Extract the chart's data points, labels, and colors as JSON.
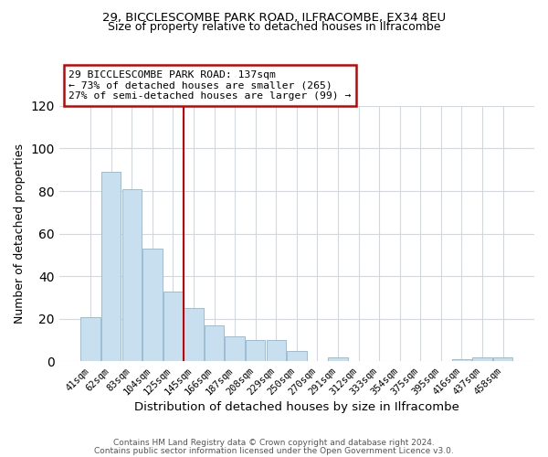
{
  "title1": "29, BICCLESCOMBE PARK ROAD, ILFRACOMBE, EX34 8EU",
  "title2": "Size of property relative to detached houses in Ilfracombe",
  "xlabel": "Distribution of detached houses by size in Ilfracombe",
  "ylabel": "Number of detached properties",
  "categories": [
    "41sqm",
    "62sqm",
    "83sqm",
    "104sqm",
    "125sqm",
    "145sqm",
    "166sqm",
    "187sqm",
    "208sqm",
    "229sqm",
    "250sqm",
    "270sqm",
    "291sqm",
    "312sqm",
    "333sqm",
    "354sqm",
    "375sqm",
    "395sqm",
    "416sqm",
    "437sqm",
    "458sqm"
  ],
  "values": [
    21,
    89,
    81,
    53,
    33,
    25,
    17,
    12,
    10,
    10,
    5,
    0,
    2,
    0,
    0,
    0,
    0,
    0,
    1,
    2,
    2
  ],
  "bar_color": "#c8dff0",
  "bar_edge_color": "#9bbdd4",
  "vline_x_index": 5,
  "vline_color": "#cc0000",
  "annotation_line1": "29 BICCLESCOMBE PARK ROAD: 137sqm",
  "annotation_line2": "← 73% of detached houses are smaller (265)",
  "annotation_line3": "27% of semi-detached houses are larger (99) →",
  "annotation_box_color": "#ffffff",
  "annotation_box_edge": "#cc0000",
  "ylim": [
    0,
    120
  ],
  "yticks": [
    0,
    20,
    40,
    60,
    80,
    100,
    120
  ],
  "footer1": "Contains HM Land Registry data © Crown copyright and database right 2024.",
  "footer2": "Contains public sector information licensed under the Open Government Licence v3.0.",
  "bg_color": "#ffffff",
  "grid_color": "#d0d8e0"
}
